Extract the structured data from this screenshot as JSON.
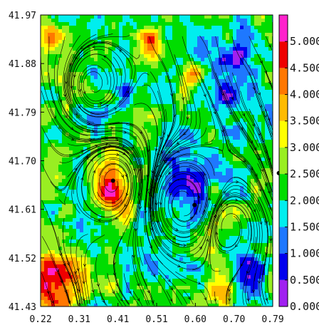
{
  "chart_data": {
    "type": "heatmap",
    "title": "",
    "xlabel": "",
    "ylabel": "",
    "xlim": [
      0.22,
      0.79
    ],
    "ylim": [
      41.43,
      41.97
    ],
    "x_ticks": [
      "0.22",
      "0.31",
      "0.41",
      "0.51",
      "0.60",
      "0.70",
      "0.79"
    ],
    "y_ticks": [
      "41.97",
      "41.88",
      "41.79",
      "41.70",
      "41.61",
      "41.52",
      "41.43"
    ],
    "overlay": "streamlines",
    "colorbar": {
      "range": [
        0.0,
        5.5
      ],
      "labels": [
        "0.000",
        "0.500",
        "1.000",
        "1.500",
        "2.000",
        "2.500",
        "3.000",
        "3.500",
        "4.000",
        "4.500",
        "5.000"
      ],
      "label_values": [
        0.0,
        0.5,
        1.0,
        1.5,
        2.0,
        2.5,
        3.0,
        3.5,
        4.0,
        4.5,
        5.0
      ],
      "bins": [
        {
          "from": 0.0,
          "to": 0.5,
          "color": "#a020f0"
        },
        {
          "from": 0.5,
          "to": 1.0,
          "color": "#0000ee"
        },
        {
          "from": 1.0,
          "to": 1.5,
          "color": "#1e78ff"
        },
        {
          "from": 1.5,
          "to": 2.0,
          "color": "#00eeee"
        },
        {
          "from": 2.0,
          "to": 2.5,
          "color": "#00dd00"
        },
        {
          "from": 2.5,
          "to": 3.0,
          "color": "#99ee22"
        },
        {
          "from": 3.0,
          "to": 3.5,
          "color": "#ffff00"
        },
        {
          "from": 3.5,
          "to": 4.0,
          "color": "#ffbb00"
        },
        {
          "from": 4.0,
          "to": 4.5,
          "color": "#ff7700"
        },
        {
          "from": 4.5,
          "to": 5.0,
          "color": "#ee0000"
        },
        {
          "from": 5.0,
          "to": 5.5,
          "color": "#ff22cc"
        }
      ]
    },
    "markers": [
      {
        "x": 0.398,
        "y": 41.663
      },
      {
        "x": 0.598,
        "y": 41.618
      },
      {
        "x": 0.805,
        "y": 41.677
      }
    ],
    "field_features": [
      {
        "x": 0.245,
        "y": 41.47,
        "value": 5.2,
        "spread": 0.045
      },
      {
        "x": 0.4,
        "y": 41.64,
        "value": 4.9,
        "spread": 0.03
      },
      {
        "x": 0.6,
        "y": 41.86,
        "value": 4.6,
        "spread": 0.018
      },
      {
        "x": 0.49,
        "y": 41.92,
        "value": 4.4,
        "spread": 0.015
      },
      {
        "x": 0.24,
        "y": 41.93,
        "value": 4.2,
        "spread": 0.016
      },
      {
        "x": 0.57,
        "y": 41.66,
        "value": 0.5,
        "spread": 0.05
      },
      {
        "x": 0.68,
        "y": 41.85,
        "value": 0.8,
        "spread": 0.055
      },
      {
        "x": 0.73,
        "y": 41.5,
        "value": 1.0,
        "spread": 0.04
      },
      {
        "x": 0.5,
        "y": 41.52,
        "value": 1.4,
        "spread": 0.03
      },
      {
        "x": 0.4,
        "y": 41.82,
        "value": 1.5,
        "spread": 0.04
      },
      {
        "x": 0.31,
        "y": 41.6,
        "value": 1.4,
        "spread": 0.025
      },
      {
        "x": 0.66,
        "y": 41.45,
        "value": 3.6,
        "spread": 0.025
      }
    ]
  }
}
